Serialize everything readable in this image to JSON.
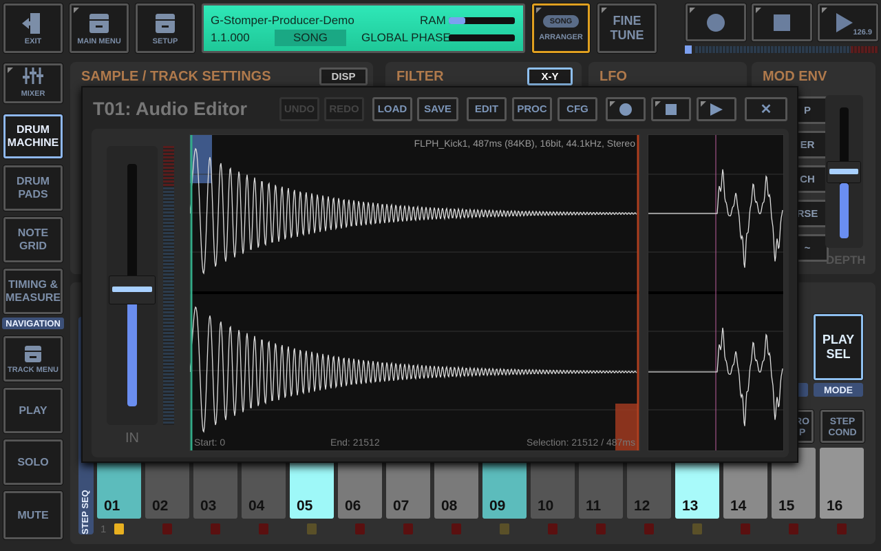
{
  "topbar": {
    "exit": "EXIT",
    "main_menu": "MAIN MENU",
    "setup": "SETUP",
    "song_pill": "SONG",
    "arranger": "ARRANGER",
    "fine_tune": [
      "FINE",
      "TUNE"
    ],
    "tempo": "126.9"
  },
  "lcd": {
    "project": "G-Stomper-Producer-Demo",
    "position": "1.1.000",
    "mode": "SONG",
    "ram_label": "RAM",
    "ram_fraction": 0.25,
    "phase_label": "GLOBAL PHASE",
    "phase_fraction": 0
  },
  "sidebar": {
    "items": [
      {
        "label": "MIXER"
      },
      {
        "label": "DRUM\nMACHINE"
      },
      {
        "label": "DRUM\nPADS"
      },
      {
        "label": "NOTE\nGRID"
      },
      {
        "label": "TIMING &\nMEASURE"
      },
      {
        "label": "TRACK MENU"
      },
      {
        "label": "PLAY"
      },
      {
        "label": "SOLO"
      },
      {
        "label": "MUTE"
      }
    ],
    "navigation": "NAVIGATION"
  },
  "panels": {
    "sample": "SAMPLE / TRACK SETTINGS",
    "disp": "DISP",
    "filter": "FILTER",
    "xy": "X-Y",
    "lfo": "LFO",
    "mod_env": "MOD ENV",
    "depth": "DEPTH",
    "mod_buttons": [
      "P",
      "ER",
      "CH",
      "RSE",
      "~"
    ],
    "play_sel": "PLAY\nSEL",
    "mode": "MODE",
    "zero_p": "RO\nP",
    "step_cond": "STEP\nCOND",
    "step_seq": "STEP SEQ",
    "page": "1"
  },
  "editor": {
    "title": "T01: Audio Editor",
    "buttons": {
      "undo": "UNDO",
      "redo": "REDO",
      "load": "LOAD",
      "save": "SAVE",
      "edit": "EDIT",
      "proc": "PROC",
      "cfg": "CFG"
    },
    "close": "✕",
    "in_label": "IN",
    "info": "FLPH_Kick1, 487ms (84KB), 16bit, 44.1kHz, Stereo",
    "start": "Start: 0",
    "end": "End: 21512",
    "selection": "Selection: 21512 / 487ms",
    "input_level": 0.48
  },
  "steps": [
    {
      "n": "01",
      "c": "#5cbcbc"
    },
    {
      "n": "02",
      "c": "#555"
    },
    {
      "n": "03",
      "c": "#555"
    },
    {
      "n": "04",
      "c": "#555"
    },
    {
      "n": "05",
      "c": "#9ef8f8"
    },
    {
      "n": "06",
      "c": "#7a7a7a"
    },
    {
      "n": "07",
      "c": "#7a7a7a"
    },
    {
      "n": "08",
      "c": "#7a7a7a"
    },
    {
      "n": "09",
      "c": "#5cbcbc"
    },
    {
      "n": "10",
      "c": "#555"
    },
    {
      "n": "11",
      "c": "#555"
    },
    {
      "n": "12",
      "c": "#555"
    },
    {
      "n": "13",
      "c": "#a8fafa"
    },
    {
      "n": "14",
      "c": "#8a8a8a"
    },
    {
      "n": "15",
      "c": "#8a8a8a"
    },
    {
      "n": "16",
      "c": "#959595"
    }
  ],
  "colors": {
    "accent": "#7c95b8",
    "lcd": "#2fe8b8",
    "arranger_border": "#e0a020",
    "section_title": "#b07a4c"
  }
}
